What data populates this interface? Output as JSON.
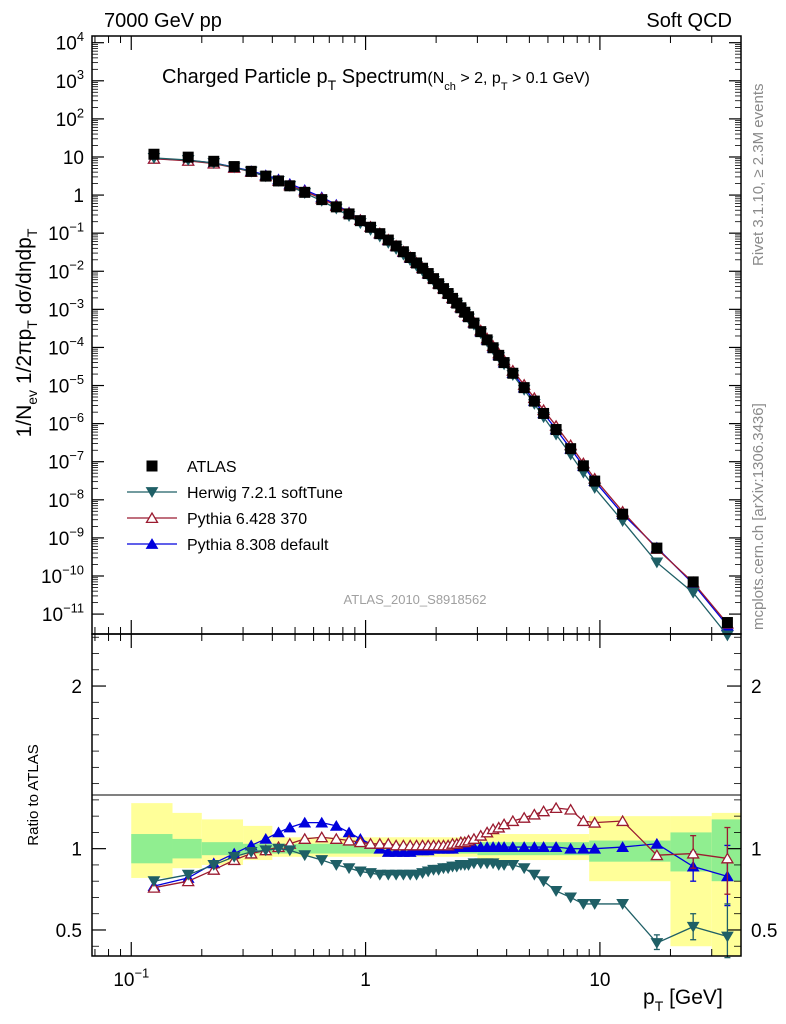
{
  "header": {
    "left": "7000 GeV pp",
    "right": "Soft QCD"
  },
  "side": {
    "rivet": "Rivet 3.1.10, ≥ 2.3M events",
    "source": "mcplots.cern.ch [arXiv:1306.3436]"
  },
  "colors": {
    "atlas": "#000000",
    "herwig": "#1f5f66",
    "pythia6": "#9b1b30",
    "pythia8": "#0000dd",
    "band_inner": "#90ee90",
    "band_outer": "#ffff99"
  },
  "chart_data": [
    {
      "type": "line",
      "panel": "main",
      "title": "Charged Particle p_T Spectrum",
      "title_sub": "(N_ch > 2, p_T > 0.1 GeV)",
      "title_parts": {
        "t1": "Charged Particle p",
        "t2": "T",
        "t3": " Spectrum",
        "t4": "(N",
        "t5": "ch",
        "t6": " > 2, p",
        "t7": "T",
        "t8": " > 0.1 GeV)"
      },
      "ylabel": "1/N_ev 1/2πp_T dσ/dηdp_T",
      "ylabel_parts": {
        "a": "1/N",
        "b": "ev",
        "c": " 1/2πp",
        "d": "T",
        "e": " dσ/dηdp",
        "f": "T"
      },
      "xlabel": "p_T [GeV]",
      "xlabel_parts": {
        "a": "p",
        "b": "T",
        "c": "  [GeV]"
      },
      "xscale": "log",
      "yscale": "log",
      "xlim": [
        0.068,
        40
      ],
      "ylim": [
        3e-12,
        15000
      ],
      "yticks": [
        {
          "v": 10000.0,
          "m": "10",
          "e": "4"
        },
        {
          "v": 1000.0,
          "m": "10",
          "e": "3"
        },
        {
          "v": 100.0,
          "m": "10",
          "e": "2"
        },
        {
          "v": 10,
          "m": "10",
          "e": ""
        },
        {
          "v": 1,
          "m": "1",
          "e": ""
        },
        {
          "v": 0.1,
          "m": "10",
          "e": "−1"
        },
        {
          "v": 0.01,
          "m": "10",
          "e": "−2"
        },
        {
          "v": 0.001,
          "m": "10",
          "e": "−3"
        },
        {
          "v": 0.0001,
          "m": "10",
          "e": "−4"
        },
        {
          "v": 1e-05,
          "m": "10",
          "e": "−5"
        },
        {
          "v": 1e-06,
          "m": "10",
          "e": "−6"
        },
        {
          "v": 1e-07,
          "m": "10",
          "e": "−7"
        },
        {
          "v": 1e-08,
          "m": "10",
          "e": "−8"
        },
        {
          "v": 1e-09,
          "m": "10",
          "e": "−9"
        },
        {
          "v": 1e-10,
          "m": "10",
          "e": "−10"
        },
        {
          "v": 1e-11,
          "m": "10",
          "e": "−11"
        }
      ],
      "legend_placement": "bottom-left",
      "legend": [
        "ATLAS",
        "Herwig 7.2.1 softTune",
        "Pythia 6.428 370",
        "Pythia 8.308 default"
      ],
      "watermark": "ATLAS_2010_S8918562",
      "series": [
        {
          "name": "ATLAS",
          "marker": "square",
          "ref": true,
          "x": [
            0.125,
            0.175,
            0.225,
            0.275,
            0.325,
            0.375,
            0.425,
            0.475,
            0.55,
            0.65,
            0.75,
            0.85,
            0.95,
            1.05,
            1.15,
            1.25,
            1.35,
            1.45,
            1.55,
            1.65,
            1.75,
            1.85,
            1.95,
            2.05,
            2.15,
            2.25,
            2.35,
            2.45,
            2.55,
            2.65,
            2.75,
            2.9,
            3.1,
            3.3,
            3.5,
            3.7,
            3.9,
            4.25,
            4.75,
            5.25,
            5.75,
            6.5,
            7.5,
            8.5,
            9.5,
            12.5,
            17.5,
            25,
            35
          ],
          "y": [
            11.8,
            9.9,
            7.7,
            5.6,
            4.2,
            3.15,
            2.35,
            1.75,
            1.18,
            0.76,
            0.49,
            0.32,
            0.213,
            0.143,
            0.097,
            0.066,
            0.046,
            0.0325,
            0.023,
            0.0165,
            0.012,
            0.0087,
            0.0064,
            0.0047,
            0.0035,
            0.0026,
            0.00194,
            0.00146,
            0.0011,
            0.00084,
            0.00064,
            0.000435,
            0.00026,
            0.000158,
            9.8e-05,
            6.2e-05,
            4e-05,
            2.1e-05,
            8.8e-06,
            3.9e-06,
            1.85e-06,
            7e-07,
            2.2e-07,
            7.8e-08,
            3.1e-08,
            4.2e-09,
            5.4e-10,
            7e-11,
            6e-12
          ]
        },
        {
          "name": "Herwig 7.2.1 softTune",
          "marker": "triangle-down",
          "ratio": [
            0.8,
            0.84,
            0.9,
            0.95,
            0.98,
            0.99,
            1.0,
            0.99,
            0.96,
            0.93,
            0.9,
            0.88,
            0.86,
            0.85,
            0.84,
            0.84,
            0.84,
            0.84,
            0.84,
            0.84,
            0.85,
            0.86,
            0.87,
            0.87,
            0.88,
            0.88,
            0.89,
            0.89,
            0.9,
            0.9,
            0.9,
            0.91,
            0.91,
            0.91,
            0.91,
            0.9,
            0.9,
            0.9,
            0.88,
            0.84,
            0.8,
            0.74,
            0.7,
            0.66,
            0.66,
            0.66,
            0.42,
            0.52,
            0.46
          ]
        },
        {
          "name": "Pythia 6.428 370",
          "marker": "triangle-up-open",
          "ratio": [
            0.76,
            0.8,
            0.87,
            0.93,
            0.97,
            0.99,
            1.01,
            1.03,
            1.06,
            1.07,
            1.06,
            1.05,
            1.04,
            1.03,
            1.03,
            1.03,
            1.02,
            1.02,
            1.02,
            1.02,
            1.02,
            1.02,
            1.02,
            1.02,
            1.02,
            1.02,
            1.03,
            1.03,
            1.04,
            1.04,
            1.05,
            1.06,
            1.08,
            1.1,
            1.12,
            1.13,
            1.15,
            1.17,
            1.19,
            1.21,
            1.23,
            1.25,
            1.24,
            1.17,
            1.16,
            1.17,
            0.96,
            0.97,
            0.94
          ]
        },
        {
          "name": "Pythia 8.308 default",
          "marker": "triangle-up",
          "ratio": [
            0.77,
            0.82,
            0.91,
            0.97,
            1.02,
            1.06,
            1.1,
            1.13,
            1.16,
            1.16,
            1.14,
            1.1,
            1.06,
            1.03,
            1.0,
            0.98,
            0.98,
            0.98,
            0.98,
            0.99,
            0.99,
            0.99,
            1.0,
            1.0,
            1.0,
            1.0,
            1.0,
            1.01,
            1.01,
            1.01,
            1.01,
            1.01,
            1.01,
            1.01,
            1.01,
            1.01,
            1.01,
            1.01,
            1.01,
            1.01,
            1.01,
            1.01,
            1.0,
            1.0,
            1.0,
            1.01,
            1.03,
            0.89,
            0.83
          ]
        }
      ]
    },
    {
      "type": "line",
      "panel": "ratio",
      "ylabel": "Ratio to ATLAS",
      "xscale": "log",
      "xlim": [
        0.068,
        40
      ],
      "ylim": [
        0.34,
        2.32
      ],
      "xticks": [
        {
          "v": 0.1,
          "m": "10",
          "e": "−1"
        },
        {
          "v": 1,
          "m": "1",
          "e": ""
        },
        {
          "v": 10,
          "m": "10",
          "e": ""
        }
      ],
      "yticks": [
        {
          "v": 0.5,
          "label": "0.5"
        },
        {
          "v": 1,
          "label": "1"
        },
        {
          "v": 2,
          "label": "2"
        }
      ],
      "bands": [
        {
          "lo": 0.1,
          "hi": 0.15,
          "inner": [
            0.91,
            1.09
          ],
          "outer": [
            0.82,
            1.28
          ]
        },
        {
          "lo": 0.15,
          "hi": 0.2,
          "inner": [
            0.94,
            1.06
          ],
          "outer": [
            0.88,
            1.22
          ]
        },
        {
          "lo": 0.2,
          "hi": 0.3,
          "inner": [
            0.96,
            1.04
          ],
          "outer": [
            0.9,
            1.18
          ]
        },
        {
          "lo": 0.3,
          "hi": 0.4,
          "inner": [
            0.97,
            1.03
          ],
          "outer": [
            0.93,
            1.14
          ]
        },
        {
          "lo": 0.4,
          "hi": 3.0,
          "inner": [
            0.97,
            1.03
          ],
          "outer": [
            0.95,
            1.07
          ]
        },
        {
          "lo": 3.0,
          "hi": 9.0,
          "inner": [
            0.96,
            1.04
          ],
          "outer": [
            0.93,
            1.09
          ]
        },
        {
          "lo": 9.0,
          "hi": 20.0,
          "inner": [
            0.92,
            1.05
          ],
          "outer": [
            0.8,
            1.2
          ]
        },
        {
          "lo": 20.0,
          "hi": 30.0,
          "inner": [
            0.86,
            1.1
          ],
          "outer": [
            0.4,
            1.2
          ]
        },
        {
          "lo": 30.0,
          "hi": 40.0,
          "inner": [
            0.8,
            1.18
          ],
          "outer": [
            0.34,
            1.22
          ]
        }
      ],
      "error_bars": [
        {
          "series": "Herwig 7.2.1 softTune",
          "x": 17.5,
          "lo": 0.38,
          "hi": 0.47
        },
        {
          "series": "Herwig 7.2.1 softTune",
          "x": 25,
          "lo": 0.44,
          "hi": 0.6
        },
        {
          "series": "Herwig 7.2.1 softTune",
          "x": 35,
          "lo": 0.33,
          "hi": 0.66
        },
        {
          "series": "Pythia 6.428 370",
          "x": 25,
          "lo": 0.88,
          "hi": 1.08
        },
        {
          "series": "Pythia 6.428 370",
          "x": 35,
          "lo": 0.72,
          "hi": 1.13
        },
        {
          "series": "Pythia 8.308 default",
          "x": 25,
          "lo": 0.8,
          "hi": 0.98
        },
        {
          "series": "Pythia 8.308 default",
          "x": 35,
          "lo": 0.65,
          "hi": 1.02
        }
      ]
    }
  ]
}
